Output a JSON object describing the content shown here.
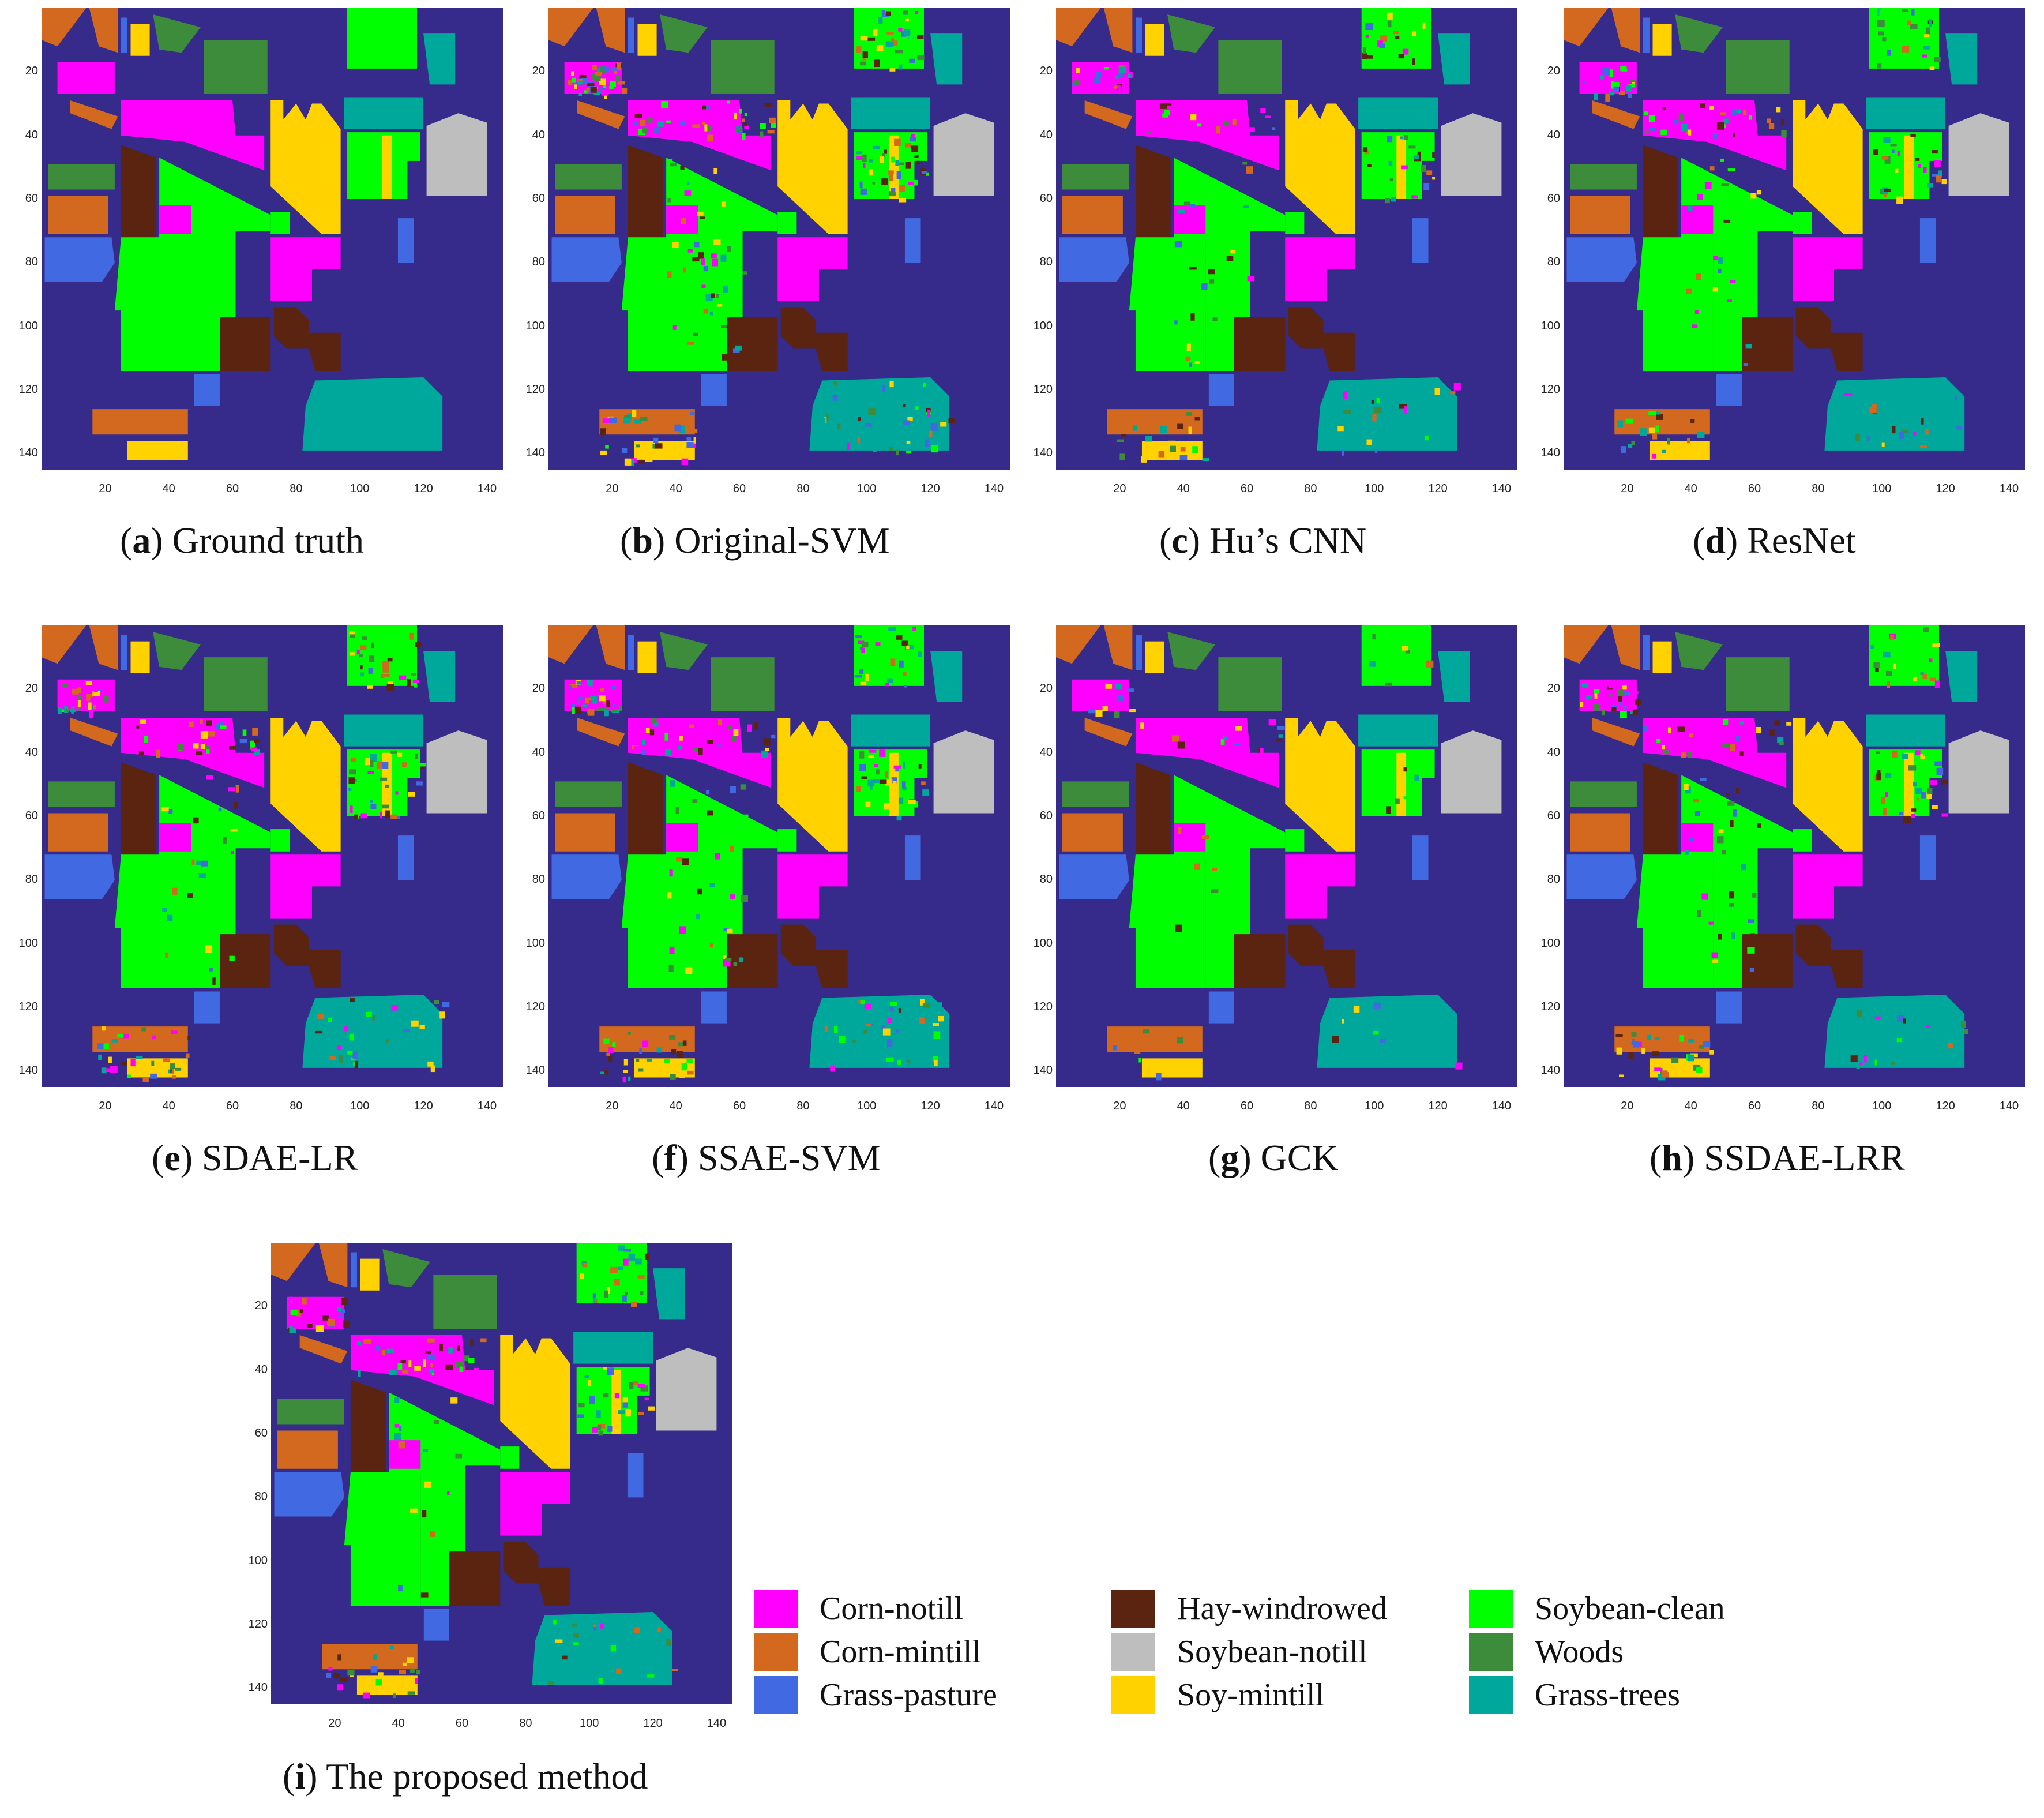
{
  "panels": [
    {
      "letter": "a",
      "title": "Ground truth"
    },
    {
      "letter": "b",
      "title": "Original-SVM"
    },
    {
      "letter": "c",
      "title": "Hu’s CNN"
    },
    {
      "letter": "d",
      "title": "ResNet"
    },
    {
      "letter": "e",
      "title": "SDAE-LR"
    },
    {
      "letter": "f",
      "title": "SSAE-SVM"
    },
    {
      "letter": "g",
      "title": "GCK"
    },
    {
      "letter": "h",
      "title": "SSDAE-LRR"
    },
    {
      "letter": "i",
      "title": "The proposed method"
    }
  ],
  "axis": {
    "y_ticks": [
      "20",
      "40",
      "60",
      "80",
      "100",
      "120",
      "140"
    ],
    "x_ticks": [
      "20",
      "40",
      "60",
      "80",
      "100",
      "120",
      "140"
    ]
  },
  "legend": [
    {
      "label": "Corn-notill",
      "color": "#ff00ff"
    },
    {
      "label": "Corn-mintill",
      "color": "#d2691e"
    },
    {
      "label": "Grass-pasture",
      "color": "#4169e1"
    },
    {
      "label": "Hay-windrowed",
      "color": "#5a2410"
    },
    {
      "label": "Soybean-notill",
      "color": "#bebebe"
    },
    {
      "label": "Soy-mintill",
      "color": "#ffd200"
    },
    {
      "label": "Soybean-clean",
      "color": "#00ff00"
    },
    {
      "label": "Woods",
      "color": "#3c8c3c"
    },
    {
      "label": "Grass-trees",
      "color": "#00a89c"
    }
  ],
  "colors": {
    "background": "#362a8a"
  }
}
